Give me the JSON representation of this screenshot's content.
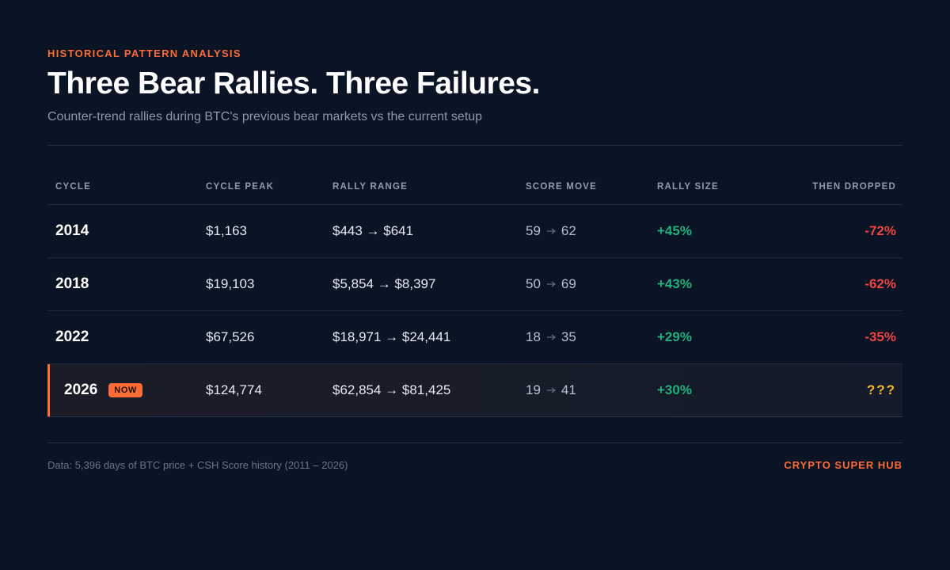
{
  "header": {
    "eyebrow": "HISTORICAL PATTERN ANALYSIS",
    "title": "Three Bear Rallies. Three Failures.",
    "subtitle": "Counter-trend rallies during BTC's previous bear markets vs the current setup"
  },
  "table": {
    "columns": [
      "CYCLE",
      "CYCLE PEAK",
      "RALLY RANGE",
      "SCORE MOVE",
      "RALLY SIZE",
      "THEN DROPPED"
    ],
    "rows": [
      {
        "cycle": "2014",
        "cycle_peak": "$1,163",
        "rally_range": "$443 → $641",
        "score_from": 59,
        "score_to": 62,
        "rally_size": "+45%",
        "then_dropped": "-72%"
      },
      {
        "cycle": "2018",
        "cycle_peak": "$19,103",
        "rally_range": "$5,854 → $8,397",
        "score_from": 50,
        "score_to": 69,
        "rally_size": "+43%",
        "then_dropped": "-62%"
      },
      {
        "cycle": "2022",
        "cycle_peak": "$67,526",
        "rally_range": "$18,971 → $24,441",
        "score_from": 18,
        "score_to": 35,
        "rally_size": "+29%",
        "then_dropped": "-35%"
      },
      {
        "cycle": "2026",
        "badge": "NOW",
        "cycle_peak": "$124,774",
        "rally_range": "$62,854 → $81,425",
        "score_from": 19,
        "score_to": 41,
        "rally_size": "+30%",
        "then_dropped": "???"
      }
    ]
  },
  "footer": {
    "source": "Data: 5,396 days of BTC price + CSH Score history (2011 – 2026)",
    "brand": "CRYPTO SUPER HUB"
  }
}
